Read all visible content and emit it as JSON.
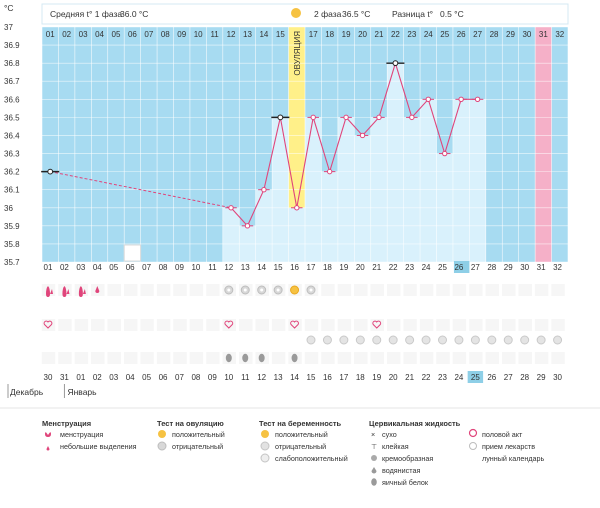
{
  "chart_data": {
    "type": "line",
    "unit": "°C",
    "ylim": [
      35.7,
      37.0
    ],
    "yticks": [
      35.7,
      35.8,
      35.9,
      36,
      36.1,
      36.2,
      36.3,
      36.4,
      36.5,
      36.6,
      36.7,
      36.8,
      36.9,
      37
    ],
    "header": {
      "phase1_label": "Средняя t° 1 фаза",
      "phase1_value": "36.0 °C",
      "phase2_label": "2 фаза",
      "phase2_value": "36.5 °C",
      "diff_label": "Разница t°",
      "diff_value": "0.5 °C"
    },
    "top_days": [
      "01",
      "02",
      "03",
      "04",
      "05",
      "06",
      "07",
      "08",
      "09",
      "10",
      "11",
      "12",
      "13",
      "14",
      "15",
      "16",
      "17",
      "18",
      "19",
      "20",
      "21",
      "22",
      "23",
      "24",
      "25",
      "26",
      "27",
      "28",
      "29",
      "30",
      "31",
      "32"
    ],
    "cycle_day_labels": [
      "01",
      "02",
      "03",
      "04",
      "05",
      "06",
      "07",
      "08",
      "09",
      "10",
      "11",
      "12",
      "13",
      "14",
      "15",
      "16"
    ],
    "highlight_day": "27",
    "ovulation_label": "ОВУЛЯЦИЯ",
    "ovulation_day": 16,
    "period_day": 31,
    "temperature": [
      {
        "day": 1,
        "temp": 36.2
      },
      {
        "day": 12,
        "temp": 36.0
      },
      {
        "day": 13,
        "temp": 35.9
      },
      {
        "day": 14,
        "temp": 36.1
      },
      {
        "day": 15,
        "temp": 36.5
      },
      {
        "day": 16,
        "temp": 36.0
      },
      {
        "day": 17,
        "temp": 36.5
      },
      {
        "day": 18,
        "temp": 36.2
      },
      {
        "day": 19,
        "temp": 36.5
      },
      {
        "day": 20,
        "temp": 36.4
      },
      {
        "day": 21,
        "temp": 36.5
      },
      {
        "day": 22,
        "temp": 36.8
      },
      {
        "day": 23,
        "temp": 36.5
      },
      {
        "day": 24,
        "temp": 36.6
      },
      {
        "day": 25,
        "temp": 36.3
      },
      {
        "day": 26,
        "temp": 36.6
      },
      {
        "day": 27,
        "temp": 36.6
      }
    ],
    "dashed_segment": [
      1,
      12
    ],
    "coverline_days": [
      1,
      15,
      22
    ],
    "bars": [
      {
        "day": 12,
        "temp": 36.0
      },
      {
        "day": 13,
        "temp": 35.9
      },
      {
        "day": 14,
        "temp": 36.1
      },
      {
        "day": 15,
        "temp": 36.5
      },
      {
        "day": 16,
        "temp": 36.0
      },
      {
        "day": 17,
        "temp": 36.5
      },
      {
        "day": 18,
        "temp": 36.2
      },
      {
        "day": 19,
        "temp": 36.5
      },
      {
        "day": 20,
        "temp": 36.4
      },
      {
        "day": 21,
        "temp": 36.5
      },
      {
        "day": 22,
        "temp": 36.8
      },
      {
        "day": 23,
        "temp": 36.5
      },
      {
        "day": 24,
        "temp": 36.6
      },
      {
        "day": 25,
        "temp": 36.3
      },
      {
        "day": 26,
        "temp": 36.6
      },
      {
        "day": 27,
        "temp": 36.6
      }
    ],
    "moon_day": 6,
    "rows": {
      "menstruation": [
        {
          "day": 1,
          "level": "heavy"
        },
        {
          "day": 2,
          "level": "heavy"
        },
        {
          "day": 3,
          "level": "heavy"
        },
        {
          "day": 4,
          "level": "light"
        }
      ],
      "ovulation_test": [
        {
          "day": 12,
          "result": "negative"
        },
        {
          "day": 13,
          "result": "negative"
        },
        {
          "day": 14,
          "result": "negative"
        },
        {
          "day": 15,
          "result": "negative"
        },
        {
          "day": 16,
          "result": "positive"
        },
        {
          "day": 17,
          "result": "negative"
        }
      ],
      "pregnancy_test_days": [
        17,
        18,
        19,
        20,
        21,
        22,
        23,
        24,
        25,
        26,
        27,
        28,
        29,
        30,
        31,
        32
      ],
      "intercourse": [
        1,
        12,
        16,
        21
      ],
      "cervical_fluid": [
        {
          "day": 12,
          "type": "egg_white"
        },
        {
          "day": 13,
          "type": "egg_white"
        },
        {
          "day": 14,
          "type": "egg_white"
        },
        {
          "day": 16,
          "type": "egg_white"
        }
      ]
    },
    "dates": [
      {
        "d": "30",
        "red": true
      },
      {
        "d": "31",
        "red": false
      },
      {
        "d": "01",
        "red": false
      },
      {
        "d": "02",
        "red": false
      },
      {
        "d": "03",
        "red": false
      },
      {
        "d": "04",
        "red": false
      },
      {
        "d": "05",
        "red": true
      },
      {
        "d": "06",
        "red": true
      },
      {
        "d": "07",
        "red": false
      },
      {
        "d": "08",
        "red": false
      },
      {
        "d": "09",
        "red": false
      },
      {
        "d": "10",
        "red": false
      },
      {
        "d": "11",
        "red": false
      },
      {
        "d": "12",
        "red": true
      },
      {
        "d": "13",
        "red": true
      },
      {
        "d": "14",
        "red": false
      },
      {
        "d": "15",
        "red": false
      },
      {
        "d": "16",
        "red": false
      },
      {
        "d": "17",
        "red": false
      },
      {
        "d": "18",
        "red": false
      },
      {
        "d": "19",
        "red": true
      },
      {
        "d": "20",
        "red": true
      },
      {
        "d": "21",
        "red": false
      },
      {
        "d": "22",
        "red": false
      },
      {
        "d": "23",
        "red": false
      },
      {
        "d": "24",
        "red": false
      },
      {
        "d": "25",
        "red": false,
        "highlight": true
      },
      {
        "d": "26",
        "red": true
      },
      {
        "d": "27",
        "red": true
      },
      {
        "d": "28",
        "red": false
      },
      {
        "d": "29",
        "red": false
      },
      {
        "d": "30",
        "red": false
      }
    ],
    "months": [
      "Декабрь",
      "Январь"
    ]
  },
  "legend": {
    "menstruation": {
      "title": "Менструация",
      "items": [
        "менструация",
        "небольшие выделения"
      ]
    },
    "ovulation_test": {
      "title": "Тест на овуляцию",
      "items": [
        "положительный",
        "отрицательный"
      ]
    },
    "pregnancy_test": {
      "title": "Тест на беременность",
      "items": [
        "положительный",
        "отрицательный",
        "слабоположительный"
      ]
    },
    "cervical": {
      "title": "Цервикальная жидкость",
      "items": [
        "сухо",
        "клейкая",
        "кремообразная",
        "водянистая",
        "яичный белок"
      ]
    },
    "other": {
      "items": [
        "половой акт",
        "прием лекарств",
        "лунный календарь"
      ]
    }
  },
  "colors": {
    "plot_bg": "#a7dbf1",
    "bar": "#d9f1fc",
    "line": "#e0457b",
    "ovulation": "#fff089",
    "period": "#f5b0c8",
    "highlight": "#8ecfe7",
    "red_text": "#d81b3f",
    "grid": "#ffffff"
  }
}
